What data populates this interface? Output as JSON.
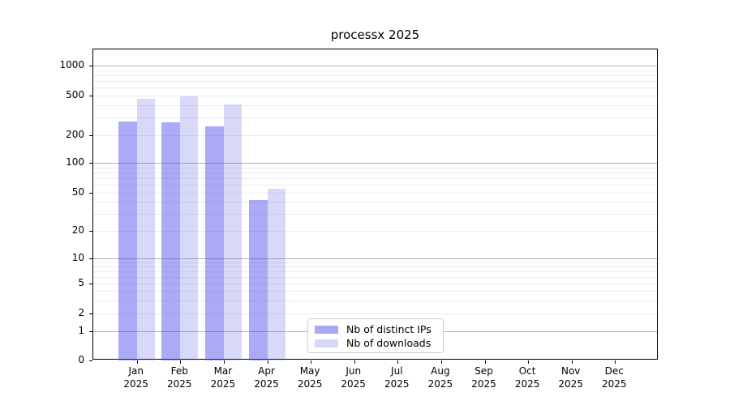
{
  "title": "processx 2025",
  "colors": {
    "bar_distinct_ips": "rgba(70,70,238,0.46)",
    "bar_downloads": "rgba(90,90,232,0.24)",
    "legend_distinct_ips": "#a9a9f5",
    "legend_downloads": "#d8d8f8",
    "grid_major": "#b0b0b0",
    "grid_minor": "#ebebeb",
    "axis": "#000000"
  },
  "legend": {
    "items": [
      {
        "label": "Nb of distinct IPs"
      },
      {
        "label": "Nb of downloads"
      }
    ]
  },
  "x_axis": {
    "months": [
      "Jan",
      "Feb",
      "Mar",
      "Apr",
      "May",
      "Jun",
      "Jul",
      "Aug",
      "Sep",
      "Oct",
      "Nov",
      "Dec"
    ],
    "year": "2025"
  },
  "y_axis": {
    "tick_labels": [
      "0",
      "1",
      "2",
      "5",
      "10",
      "20",
      "50",
      "100",
      "200",
      "500",
      "1000"
    ]
  },
  "chart_data": {
    "type": "bar",
    "title": "processx 2025",
    "categories": [
      "Jan 2025",
      "Feb 2025",
      "Mar 2025",
      "Apr 2025",
      "May 2025",
      "Jun 2025",
      "Jul 2025",
      "Aug 2025",
      "Sep 2025",
      "Oct 2025",
      "Nov 2025",
      "Dec 2025"
    ],
    "series": [
      {
        "name": "Nb of distinct IPs",
        "values": [
          277,
          270,
          247,
          42,
          null,
          null,
          null,
          null,
          null,
          null,
          null,
          null
        ]
      },
      {
        "name": "Nb of downloads",
        "values": [
          460,
          490,
          405,
          55,
          null,
          null,
          null,
          null,
          null,
          null,
          null,
          null
        ]
      }
    ],
    "yscale": "log",
    "yticks": [
      0,
      1,
      2,
      5,
      10,
      20,
      50,
      100,
      200,
      500,
      1000
    ],
    "ylim": [
      0,
      1500
    ],
    "grid": "horizontal",
    "legend_position": "lower center (inside plot)"
  }
}
